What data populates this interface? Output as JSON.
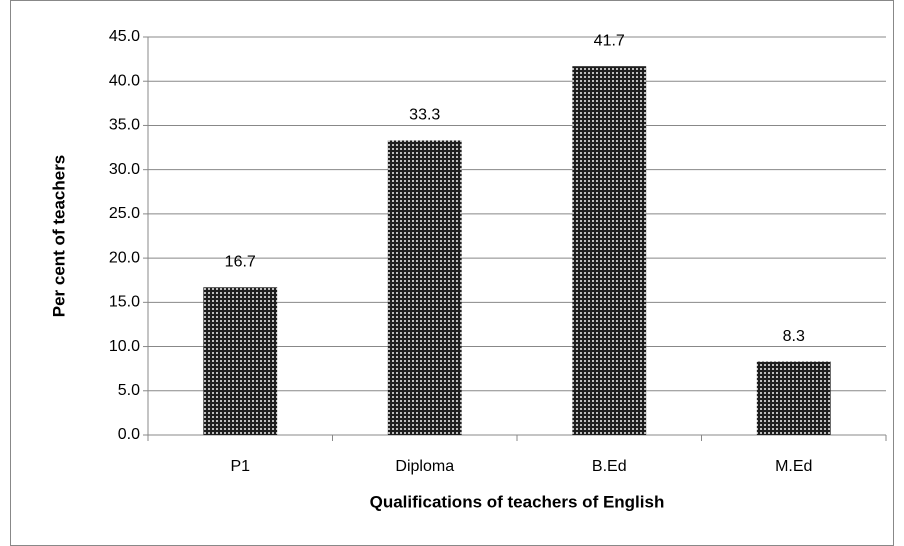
{
  "chart_data": {
    "type": "bar",
    "categories": [
      "P1",
      "Diploma",
      "B.Ed",
      "M.Ed"
    ],
    "values": [
      16.7,
      33.3,
      41.7,
      8.3
    ],
    "color": "#222222",
    "xlabel": "Qualifications of teachers of English",
    "ylabel": "Per cent of teachers",
    "ylim": [
      0,
      45
    ],
    "yticks": [
      {
        "value": 0,
        "label": "0.0"
      },
      {
        "value": 5,
        "label": "5.0"
      },
      {
        "value": 10,
        "label": "10.0"
      },
      {
        "value": 15,
        "label": "15.0"
      },
      {
        "value": 20,
        "label": "20.0"
      },
      {
        "value": 25,
        "label": "25.0"
      },
      {
        "value": 30,
        "label": "30.0"
      },
      {
        "value": 35,
        "label": "35.0"
      },
      {
        "value": 40,
        "label": "40.0"
      },
      {
        "value": 45,
        "label": "45.0"
      }
    ],
    "grid": true
  }
}
